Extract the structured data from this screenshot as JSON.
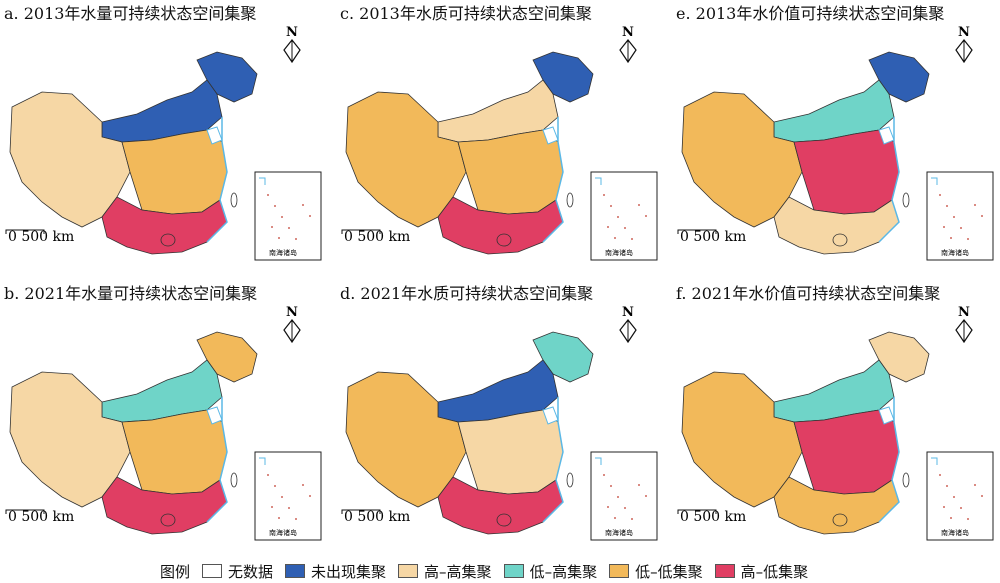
{
  "panels": [
    {
      "title": "a. 2013年水量可持续状态空间集聚",
      "palette": [
        "#2f5fb3",
        "#2f5fb3",
        "#f6d7a5",
        "#f2b95a",
        "#e03e63"
      ]
    },
    {
      "title": "c. 2013年水质可持续状态空间集聚",
      "palette": [
        "#2f5fb3",
        "#f6d7a5",
        "#f2b95a",
        "#f2b95a",
        "#e03e63"
      ]
    },
    {
      "title": "e. 2013年水价值可持续状态空间集聚",
      "palette": [
        "#2f5fb3",
        "#6fd4c8",
        "#f2b95a",
        "#e03e63",
        "#f6d7a5"
      ]
    },
    {
      "title": "b. 2021年水量可持续状态空间集聚",
      "palette": [
        "#f2b95a",
        "#6fd4c8",
        "#f6d7a5",
        "#f2b95a",
        "#e03e63"
      ]
    },
    {
      "title": "d. 2021年水质可持续状态空间集聚",
      "palette": [
        "#6fd4c8",
        "#2f5fb3",
        "#f2b95a",
        "#f6d7a5",
        "#e03e63"
      ]
    },
    {
      "title": "f. 2021年水价值可持续状态空间集聚",
      "palette": [
        "#f6d7a5",
        "#6fd4c8",
        "#f2b95a",
        "#e03e63",
        "#f2b95a"
      ]
    }
  ],
  "map_text": {
    "north": "N",
    "scale": "0 500 km",
    "inset": "南海诸岛"
  },
  "legend": {
    "title": "图例",
    "items": [
      {
        "label": "无数据",
        "color": "#ffffff"
      },
      {
        "label": "未出现集聚",
        "color": "#2f5fb3"
      },
      {
        "label": "高–高集聚",
        "color": "#f6d7a5"
      },
      {
        "label": "低–高集聚",
        "color": "#6fd4c8"
      },
      {
        "label": "低–低集聚",
        "color": "#f2b95a"
      },
      {
        "label": "高–低集聚",
        "color": "#e03e63"
      }
    ]
  }
}
